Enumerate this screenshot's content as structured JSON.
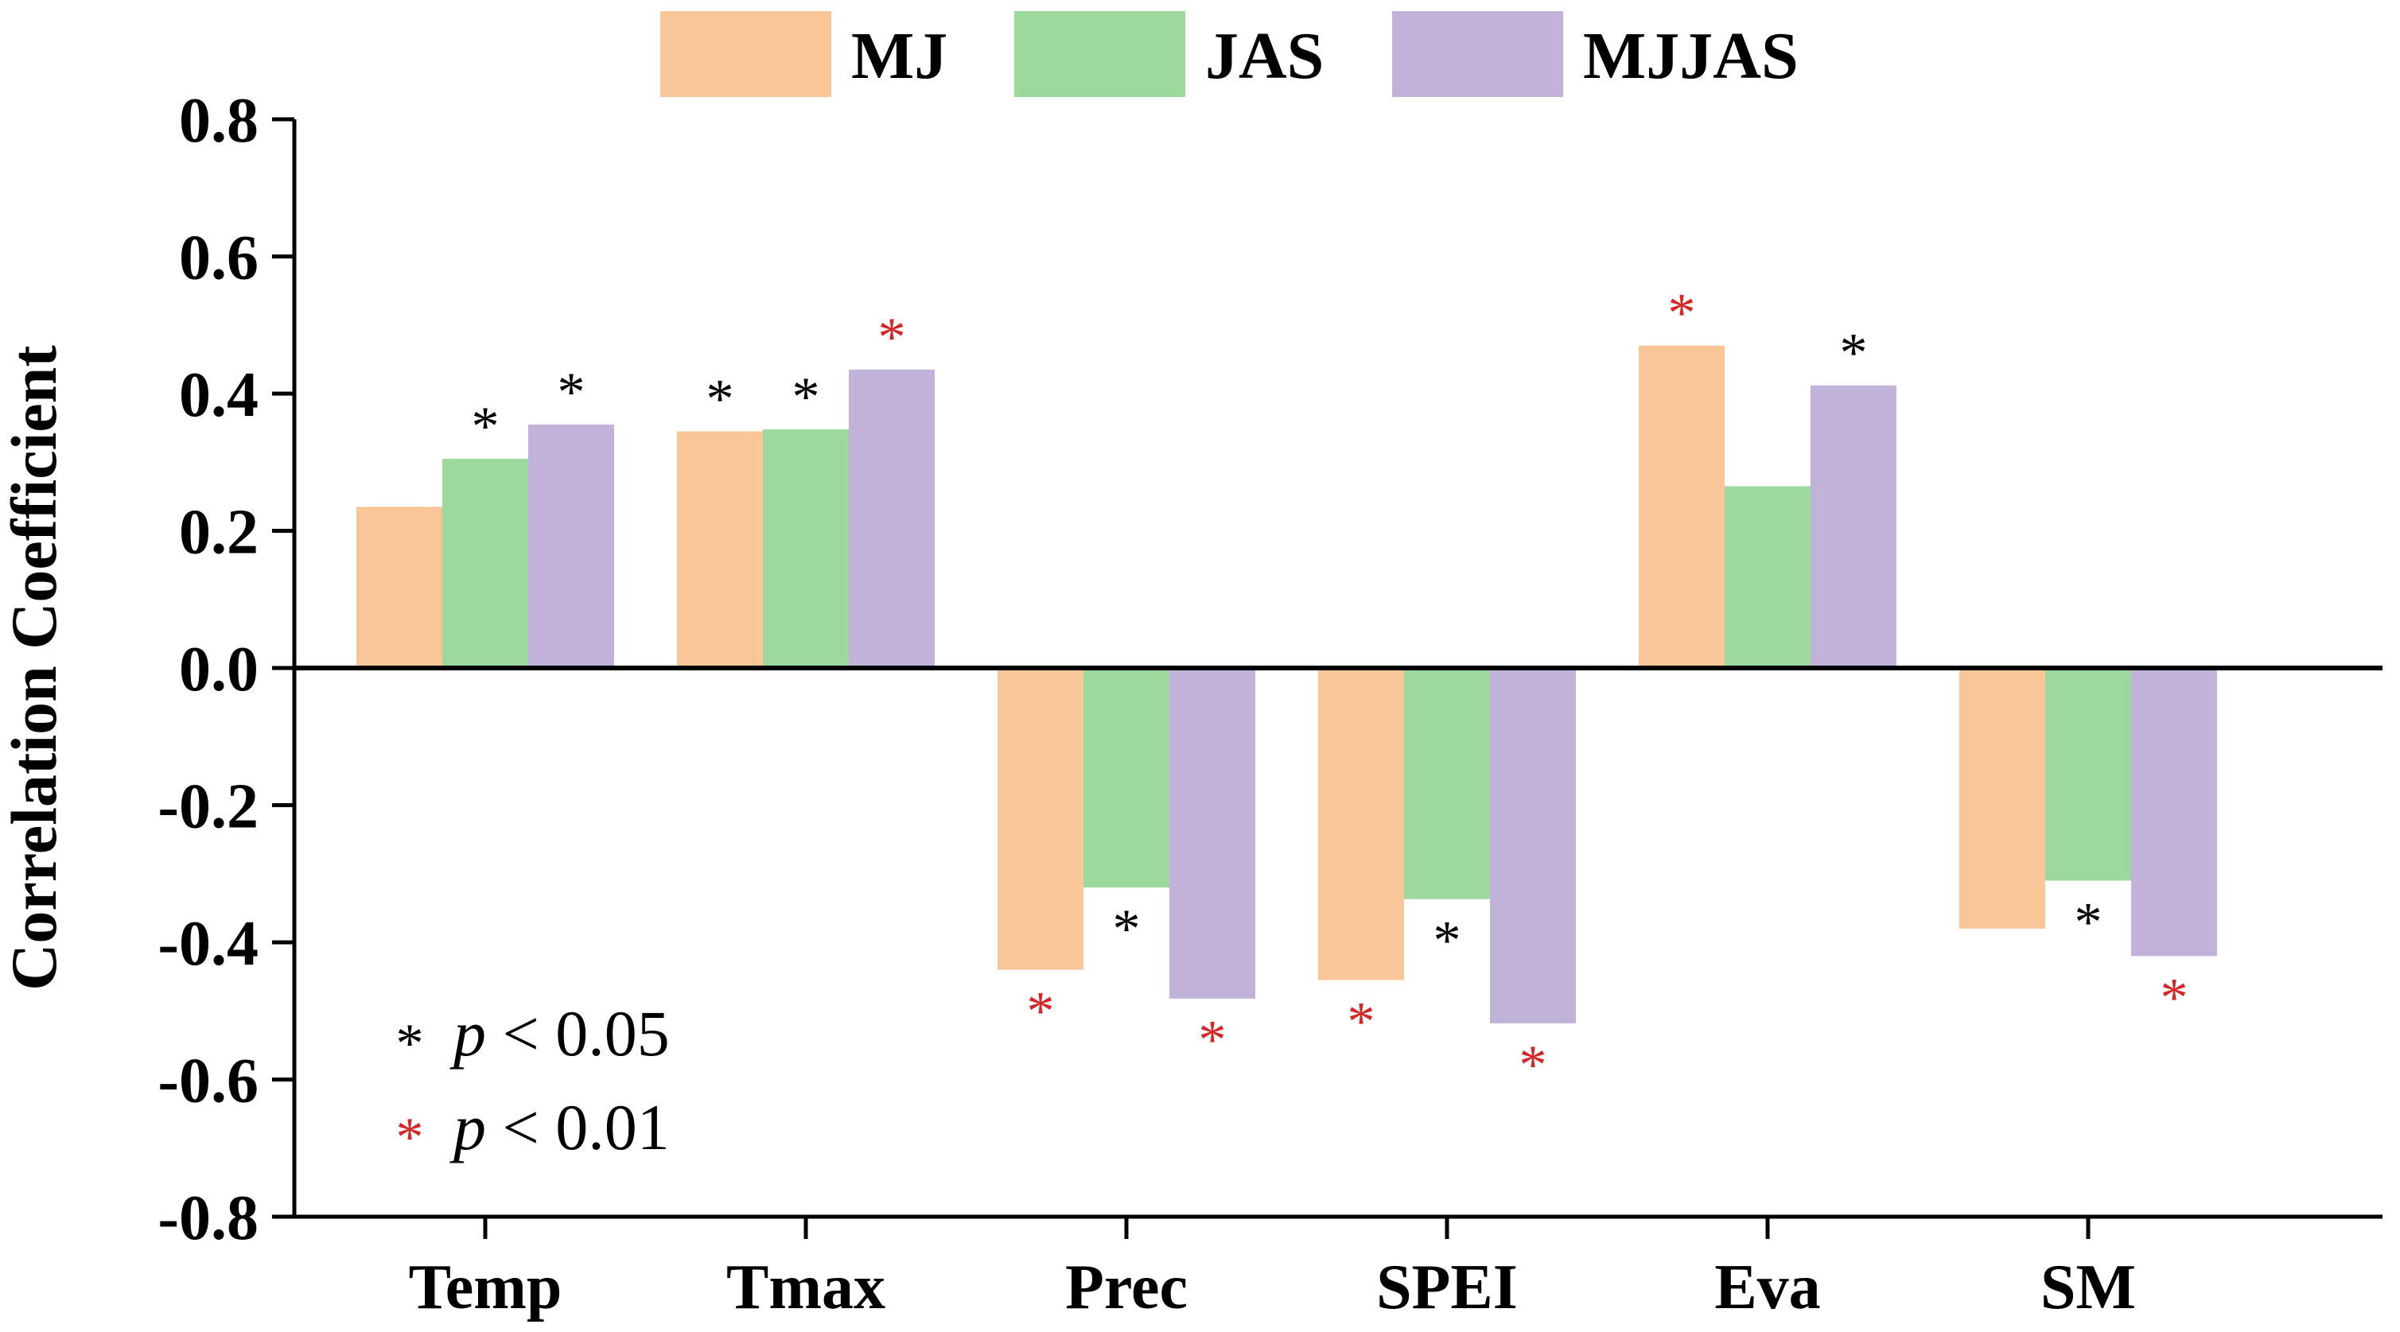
{
  "chart_data": {
    "type": "bar",
    "title": "",
    "xlabel": "",
    "ylabel": "Correlation Coefficient",
    "ylim": [
      -0.8,
      0.8
    ],
    "yticks": [
      "0.8",
      "0.6",
      "0.4",
      "0.2",
      "0.0",
      "-0.2",
      "-0.4",
      "-0.6",
      "-0.8"
    ],
    "ytick_values": [
      0.8,
      0.6,
      0.4,
      0.2,
      0.0,
      -0.2,
      -0.4,
      -0.6,
      -0.8
    ],
    "categories": [
      "Temp",
      "Tmax",
      "Prec",
      "SPEI",
      "Eva",
      "SM"
    ],
    "series": [
      {
        "name": "MJ",
        "color": "#f9c698",
        "values": [
          0.235,
          0.345,
          -0.44,
          -0.455,
          0.47,
          -0.38
        ]
      },
      {
        "name": "JAS",
        "color": "#9dd89d",
        "values": [
          0.305,
          0.348,
          -0.32,
          -0.337,
          0.265,
          -0.31
        ]
      },
      {
        "name": "MJJAS",
        "color": "#c0b2d8",
        "values": [
          0.355,
          0.435,
          -0.482,
          -0.518,
          0.412,
          -0.42
        ]
      }
    ],
    "significance": [
      [
        "",
        "*",
        "*"
      ],
      [
        "*",
        "*",
        "**"
      ],
      [
        "**",
        "*",
        "**"
      ],
      [
        "**",
        "*",
        "**"
      ],
      [
        "**",
        "",
        "*"
      ],
      [
        "",
        "*",
        "**"
      ]
    ],
    "legend_position": "top",
    "grid": false,
    "significance_note": {
      "star_symbol": "*",
      "p_symbol": "p",
      "levels": [
        {
          "key": "*",
          "text": " < 0.05",
          "color": "#000000"
        },
        {
          "key": "**",
          "text": " < 0.01",
          "color": "#d62728"
        }
      ]
    }
  }
}
